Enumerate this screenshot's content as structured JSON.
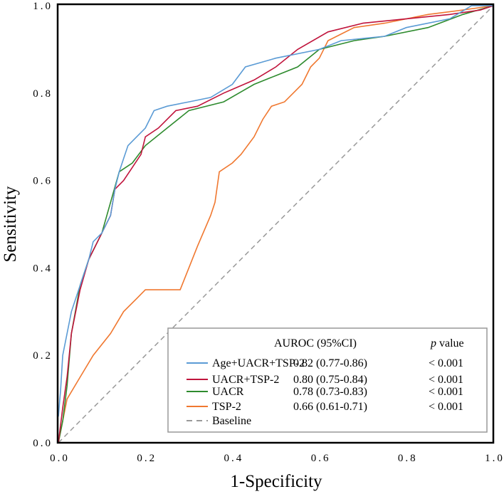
{
  "chart_data": {
    "type": "line",
    "title": "",
    "xlabel": "1-Specificity",
    "ylabel": "Sensitivity",
    "xlim": [
      0,
      1
    ],
    "ylim": [
      0,
      1
    ],
    "xticks": [
      "0.0",
      "0.2",
      "0.4",
      "0.6",
      "0.8",
      "1.0"
    ],
    "yticks": [
      "0.0",
      "0.2",
      "0.4",
      "0.6",
      "0.8",
      "1.0"
    ],
    "grid": false,
    "legend": {
      "placement": "bottom-right",
      "header_auroc": "AUROC (95%CI)",
      "header_p_italic": "p",
      "header_p_rest": "value"
    },
    "series": [
      {
        "name": "Age+UACR+TSP-2",
        "auroc": "0.82 (0.77-0.86)",
        "p": "< 0.001",
        "color": "#5b9bd5",
        "x": [
          0,
          0.005,
          0.01,
          0.02,
          0.03,
          0.05,
          0.07,
          0.08,
          0.1,
          0.12,
          0.13,
          0.14,
          0.15,
          0.16,
          0.18,
          0.2,
          0.22,
          0.25,
          0.3,
          0.35,
          0.4,
          0.43,
          0.5,
          0.6,
          0.65,
          0.75,
          0.8,
          0.9,
          0.95,
          1
        ],
        "y": [
          0.06,
          0.12,
          0.2,
          0.25,
          0.3,
          0.36,
          0.42,
          0.46,
          0.48,
          0.52,
          0.58,
          0.62,
          0.65,
          0.68,
          0.7,
          0.72,
          0.76,
          0.77,
          0.78,
          0.79,
          0.82,
          0.86,
          0.88,
          0.9,
          0.92,
          0.93,
          0.95,
          0.97,
          1,
          1
        ]
      },
      {
        "name": "UACR+TSP-2",
        "auroc": "0.80 (0.75-0.84)",
        "p": "< 0.001",
        "color": "#c0143c",
        "x": [
          0,
          0.01,
          0.02,
          0.03,
          0.05,
          0.07,
          0.1,
          0.12,
          0.13,
          0.15,
          0.17,
          0.19,
          0.2,
          0.23,
          0.27,
          0.32,
          0.38,
          0.45,
          0.5,
          0.55,
          0.62,
          0.7,
          0.8,
          0.9,
          0.97,
          1
        ],
        "y": [
          0,
          0.08,
          0.15,
          0.25,
          0.35,
          0.42,
          0.48,
          0.52,
          0.58,
          0.6,
          0.63,
          0.66,
          0.7,
          0.72,
          0.76,
          0.77,
          0.8,
          0.83,
          0.86,
          0.9,
          0.94,
          0.96,
          0.97,
          0.98,
          0.99,
          1
        ]
      },
      {
        "name": "UACR",
        "auroc": "0.78 (0.73-0.83)",
        "p": "< 0.001",
        "color": "#2e8b2e",
        "x": [
          0,
          0.01,
          0.02,
          0.03,
          0.05,
          0.07,
          0.1,
          0.12,
          0.14,
          0.17,
          0.2,
          0.25,
          0.3,
          0.38,
          0.45,
          0.5,
          0.55,
          0.6,
          0.68,
          0.75,
          0.85,
          0.93,
          1
        ],
        "y": [
          0,
          0.05,
          0.13,
          0.25,
          0.36,
          0.42,
          0.48,
          0.55,
          0.62,
          0.64,
          0.68,
          0.72,
          0.76,
          0.78,
          0.82,
          0.84,
          0.86,
          0.9,
          0.92,
          0.93,
          0.95,
          0.98,
          1
        ]
      },
      {
        "name": "TSP-2",
        "auroc": "0.66 (0.61-0.71)",
        "p": "< 0.001",
        "color": "#f07830",
        "x": [
          0,
          0.01,
          0.02,
          0.05,
          0.08,
          0.12,
          0.15,
          0.18,
          0.2,
          0.28,
          0.3,
          0.32,
          0.35,
          0.36,
          0.37,
          0.4,
          0.42,
          0.45,
          0.47,
          0.49,
          0.52,
          0.56,
          0.58,
          0.6,
          0.62,
          0.68,
          0.75,
          0.85,
          0.93,
          1
        ],
        "y": [
          0,
          0.05,
          0.1,
          0.15,
          0.2,
          0.25,
          0.3,
          0.33,
          0.35,
          0.35,
          0.4,
          0.45,
          0.52,
          0.55,
          0.62,
          0.64,
          0.66,
          0.7,
          0.74,
          0.77,
          0.78,
          0.82,
          0.86,
          0.88,
          0.92,
          0.95,
          0.96,
          0.98,
          0.99,
          1
        ]
      }
    ],
    "baseline": {
      "name": "Baseline",
      "color": "#999999",
      "x": [
        0,
        1
      ],
      "y": [
        0,
        1
      ]
    }
  }
}
